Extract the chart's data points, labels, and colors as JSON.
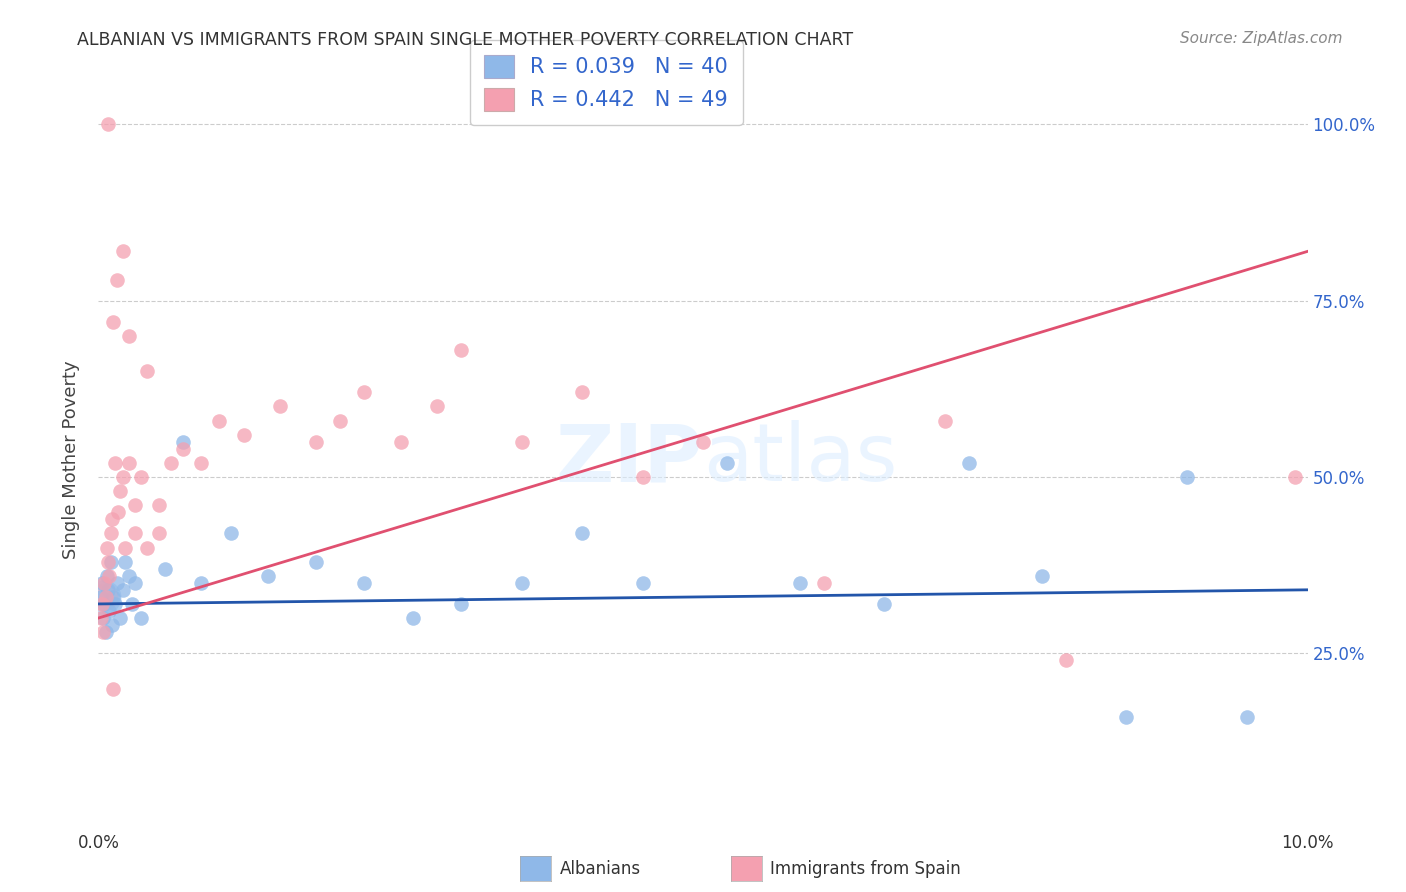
{
  "title": "ALBANIAN VS IMMIGRANTS FROM SPAIN SINGLE MOTHER POVERTY CORRELATION CHART",
  "source": "Source: ZipAtlas.com",
  "ylabel": "Single Mother Poverty",
  "legend_label1": "Albanians",
  "legend_label2": "Immigrants from Spain",
  "R1": 0.039,
  "N1": 40,
  "R2": 0.442,
  "N2": 49,
  "color_blue": "#8FB8E8",
  "color_pink": "#F4A0B0",
  "color_blue_line": "#2255AA",
  "color_pink_line": "#E05070",
  "watermark": "ZIPatlas",
  "albanians_x": [
    0.02,
    0.03,
    0.04,
    0.05,
    0.06,
    0.07,
    0.08,
    0.09,
    0.1,
    0.11,
    0.12,
    0.14,
    0.15,
    0.18,
    0.2,
    0.22,
    0.25,
    0.28,
    0.3,
    0.35,
    0.55,
    0.7,
    0.85,
    1.1,
    1.4,
    1.8,
    2.2,
    2.6,
    3.0,
    3.5,
    4.0,
    4.5,
    5.2,
    5.8,
    6.5,
    7.2,
    7.8,
    8.5,
    9.0,
    9.5
  ],
  "albanians_y": [
    33,
    35,
    30,
    32,
    28,
    36,
    34,
    31,
    38,
    29,
    33,
    32,
    35,
    30,
    34,
    38,
    36,
    32,
    35,
    30,
    37,
    55,
    35,
    42,
    36,
    38,
    35,
    30,
    32,
    35,
    42,
    35,
    52,
    35,
    32,
    52,
    36,
    16,
    50,
    16
  ],
  "spain_x": [
    0.02,
    0.03,
    0.04,
    0.05,
    0.06,
    0.07,
    0.08,
    0.09,
    0.1,
    0.11,
    0.12,
    0.14,
    0.16,
    0.18,
    0.2,
    0.22,
    0.25,
    0.3,
    0.35,
    0.4,
    0.5,
    0.6,
    0.7,
    0.85,
    1.0,
    1.2,
    1.5,
    1.8,
    2.0,
    2.2,
    2.5,
    2.8,
    3.0,
    3.5,
    4.0,
    4.5,
    5.0,
    6.0,
    7.0,
    8.0,
    0.08,
    0.12,
    0.15,
    0.2,
    0.25,
    0.3,
    0.4,
    0.5,
    9.9
  ],
  "spain_y": [
    30,
    32,
    28,
    35,
    33,
    40,
    38,
    36,
    42,
    44,
    20,
    52,
    45,
    48,
    50,
    40,
    52,
    42,
    50,
    40,
    46,
    52,
    54,
    52,
    58,
    56,
    60,
    55,
    58,
    62,
    55,
    60,
    68,
    55,
    62,
    50,
    55,
    35,
    58,
    24,
    100,
    72,
    78,
    82,
    70,
    46,
    65,
    42,
    50
  ],
  "xlim": [
    0,
    10
  ],
  "ylim": [
    0,
    105
  ],
  "pink_line_x0": 0,
  "pink_line_y0": 30,
  "pink_line_x1": 10,
  "pink_line_y1": 82,
  "blue_line_x0": 0,
  "blue_line_y0": 32,
  "blue_line_x1": 10,
  "blue_line_y1": 34
}
